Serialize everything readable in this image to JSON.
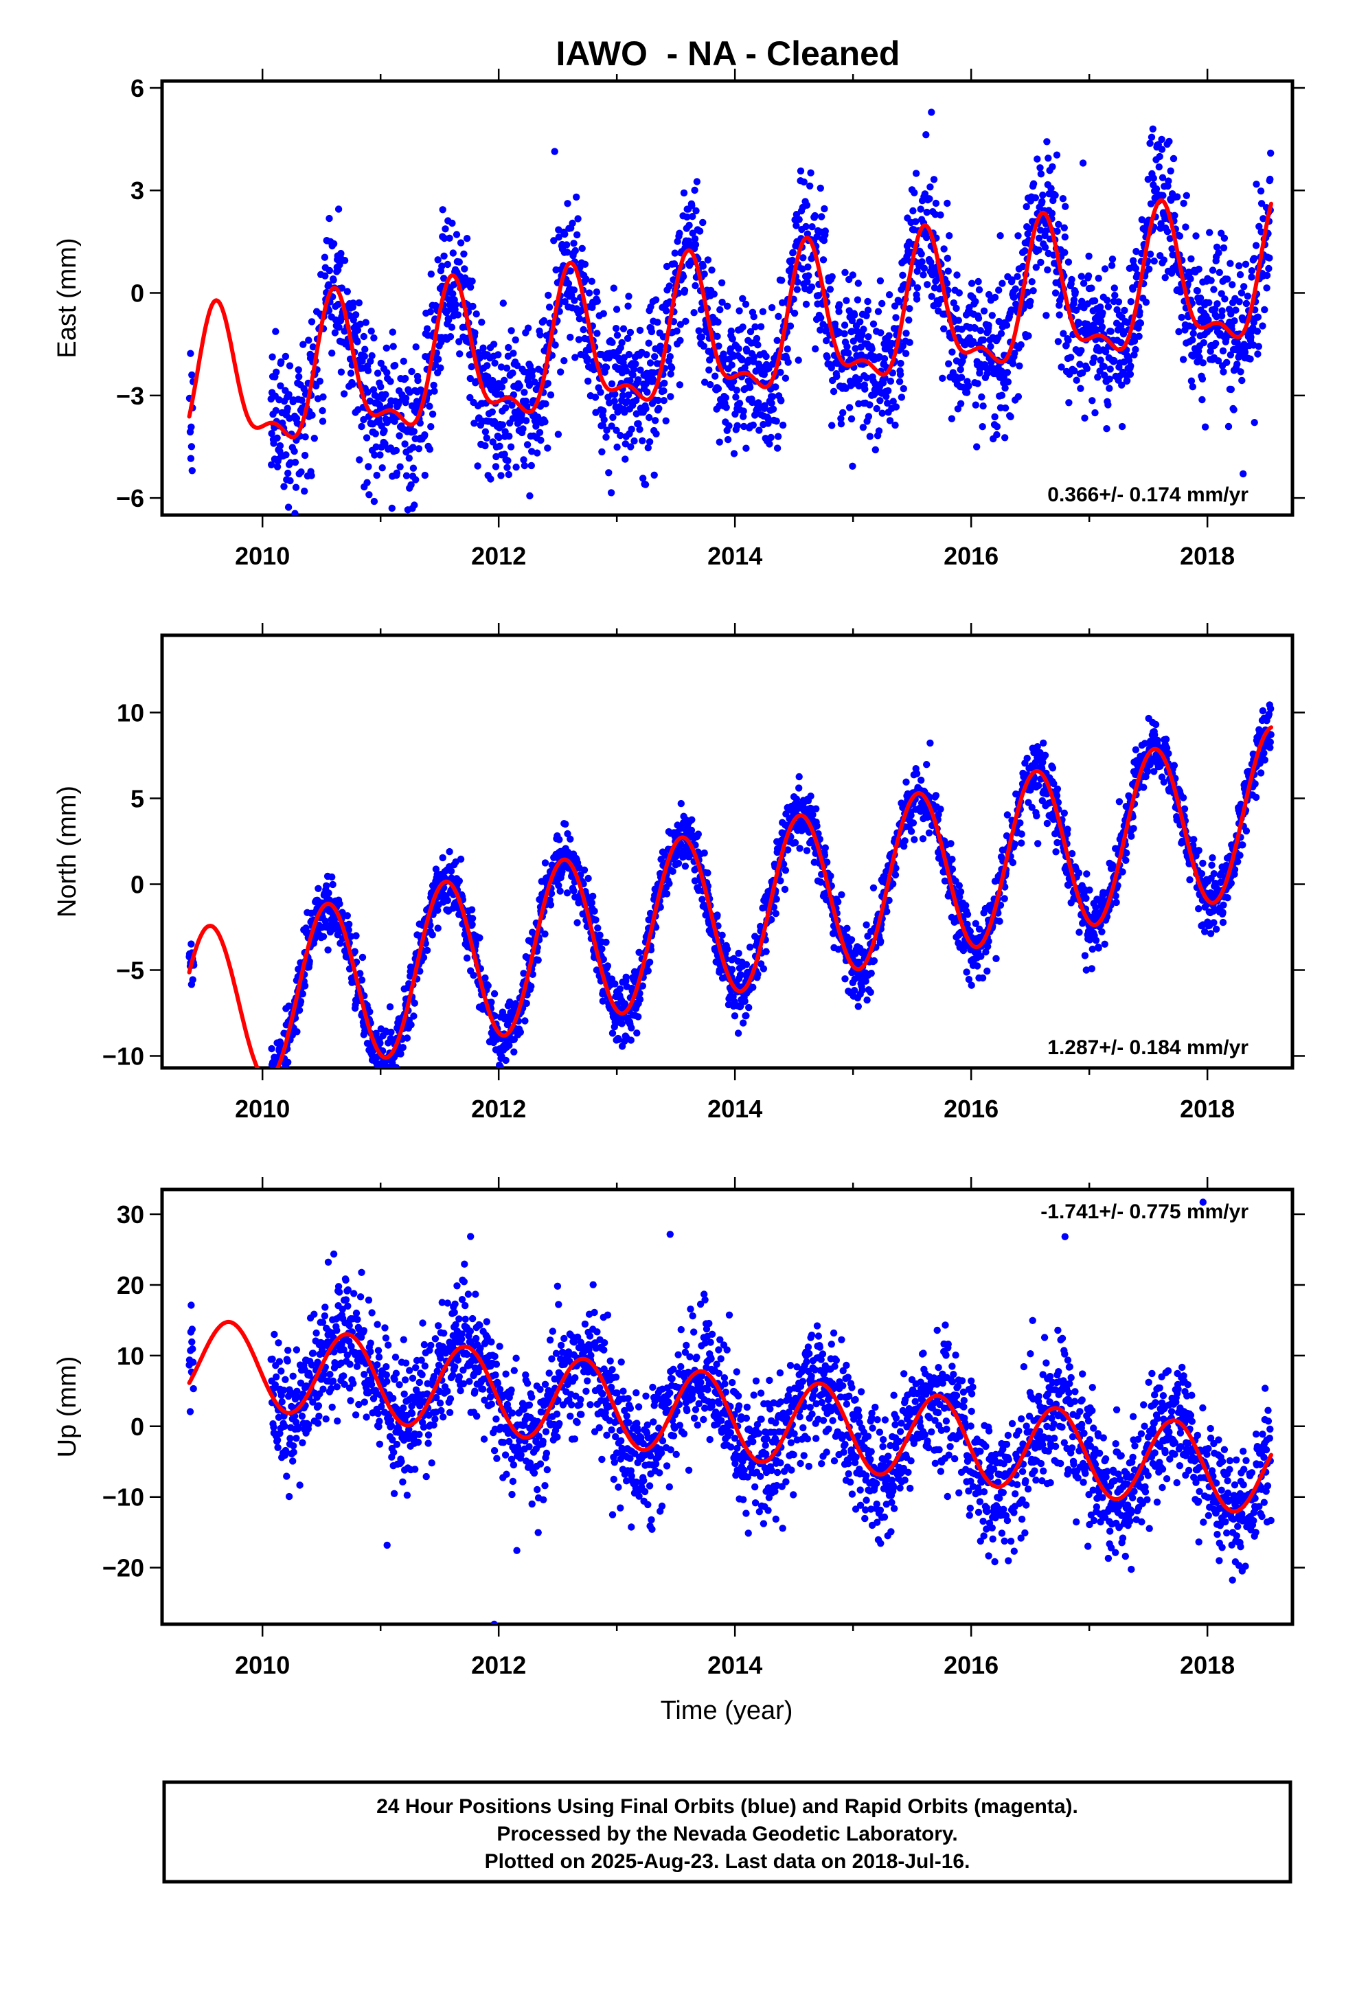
{
  "figure": {
    "title": "IAWO  - NA - Cleaned",
    "xlabel": "Time (year)",
    "footer_lines": [
      "24 Hour Positions Using Final Orbits (blue) and Rapid Orbits (magenta).",
      "Processed by the Nevada Geodetic Laboratory.",
      "Plotted on 2025-Aug-23. Last data on 2018-Jul-16."
    ],
    "colors": {
      "points": "#0000ff",
      "fit": "#ff0000",
      "frame": "#000000",
      "background": "#ffffff"
    }
  },
  "chart_data": [
    {
      "type": "scatter",
      "component": "East",
      "ylabel": "East (mm)",
      "xlim": [
        2009.15,
        2018.72
      ],
      "ylim": [
        -6.5,
        6.2
      ],
      "xticks": [
        2010,
        2012,
        2014,
        2016,
        2018
      ],
      "yticks": [
        -6,
        -3,
        0,
        3,
        6
      ],
      "ytick_labels": [
        "−6",
        "−3",
        "0",
        "3",
        "6"
      ],
      "rate_label": "0.366+/- 0.174 mm/yr",
      "rate_label_position": "bottom-right",
      "data_start": 2009.38,
      "data_end": 2018.54,
      "data_gap": [
        2009.42,
        2010.07
      ],
      "fit_model": {
        "offset": -1.3,
        "rate": 0.366,
        "ref_year": 2014.0,
        "annual_amp": 1.9,
        "annual_peak": 2009.62,
        "semiannual_amp": 0.8,
        "semiannual_peak": 2009.6
      },
      "scatter_sigma": 1.1,
      "fit_series": {
        "name": "model",
        "x": [
          2009.38,
          2009.62,
          2010.0,
          2010.32,
          2010.62,
          2011.0,
          2011.32,
          2011.62,
          2012.0,
          2012.32,
          2012.62,
          2013.0,
          2013.32,
          2013.62,
          2014.0,
          2014.32,
          2014.62,
          2015.0,
          2015.32,
          2015.62,
          2016.0,
          2016.32,
          2016.62,
          2017.0,
          2017.32,
          2017.62,
          2018.0,
          2018.32,
          2018.54
        ],
        "y": [
          -3.0,
          1.0,
          -2.4,
          -3.1,
          1.3,
          -2.2,
          -2.8,
          1.7,
          -1.6,
          -2.2,
          2.0,
          -1.3,
          -2.0,
          2.4,
          -0.9,
          -1.6,
          2.8,
          -0.5,
          -1.3,
          3.1,
          -0.2,
          -0.9,
          3.5,
          0.2,
          -0.5,
          3.8,
          0.6,
          -0.2,
          3.8
        ]
      }
    },
    {
      "type": "scatter",
      "component": "North",
      "ylabel": "North (mm)",
      "xlim": [
        2009.15,
        2018.72
      ],
      "ylim": [
        -10.7,
        14.5
      ],
      "xticks": [
        2010,
        2012,
        2014,
        2016,
        2018
      ],
      "yticks": [
        -10,
        -5,
        0,
        5,
        10
      ],
      "ytick_labels": [
        "−10",
        "−5",
        "0",
        "5",
        "10"
      ],
      "rate_label": "1.287+/- 0.184 mm/yr",
      "rate_label_position": "bottom-right",
      "data_start": 2009.38,
      "data_end": 2018.54,
      "data_gap": [
        2009.42,
        2010.07
      ],
      "fit_model": {
        "offset": -1.5,
        "rate": 1.287,
        "ref_year": 2014.0,
        "annual_amp": 4.8,
        "annual_peak": 2009.55,
        "semiannual_amp": 0.0,
        "semiannual_peak": 2009.55
      },
      "scatter_sigma": 0.9,
      "fit_series": {
        "name": "model",
        "x": [
          2009.38,
          2009.55,
          2010.0,
          2010.55,
          2011.0,
          2011.55,
          2012.0,
          2012.55,
          2013.0,
          2013.55,
          2014.0,
          2014.55,
          2015.0,
          2015.55,
          2016.0,
          2016.55,
          2017.0,
          2017.55,
          2018.0,
          2018.54
        ],
        "y": [
          -5.0,
          -0.8,
          -9.2,
          0.5,
          -8.0,
          1.7,
          -6.7,
          3.0,
          -5.4,
          4.3,
          -4.1,
          5.6,
          -2.8,
          6.9,
          -1.5,
          8.2,
          -0.2,
          9.5,
          1.1,
          10.7
        ]
      }
    },
    {
      "type": "scatter",
      "component": "Up",
      "ylabel": "Up (mm)",
      "xlim": [
        2009.15,
        2018.72
      ],
      "ylim": [
        -28,
        33.5
      ],
      "xticks": [
        2010,
        2012,
        2014,
        2016,
        2018
      ],
      "yticks": [
        -20,
        -10,
        0,
        10,
        20,
        30
      ],
      "ytick_labels": [
        "−20",
        "−10",
        "0",
        "10",
        "20",
        "30"
      ],
      "rate_label": "-1.741+/- 0.775 mm/yr",
      "rate_label_position": "top-right",
      "data_start": 2009.38,
      "data_end": 2018.54,
      "data_gap": [
        2009.42,
        2010.07
      ],
      "fit_model": {
        "offset": 1.3,
        "rate": -1.741,
        "ref_year": 2014.0,
        "annual_amp": 6.0,
        "annual_peak": 2009.72,
        "semiannual_amp": 0.0,
        "semiannual_peak": 2009.72
      },
      "scatter_sigma": 4.5,
      "fit_series": {
        "name": "model",
        "x": [
          2009.38,
          2009.72,
          2010.22,
          2010.72,
          2011.22,
          2011.72,
          2012.22,
          2012.72,
          2013.22,
          2013.72,
          2014.22,
          2014.72,
          2015.22,
          2015.72,
          2016.22,
          2016.72,
          2017.22,
          2017.72,
          2018.22,
          2018.54
        ],
        "y": [
          4.5,
          13.3,
          1.5,
          11.6,
          -0.2,
          9.8,
          -2.0,
          8.1,
          -3.7,
          6.4,
          -5.5,
          4.6,
          -7.2,
          2.9,
          -8.9,
          1.1,
          -10.6,
          -0.6,
          -12.4,
          -6.0
        ]
      }
    }
  ]
}
